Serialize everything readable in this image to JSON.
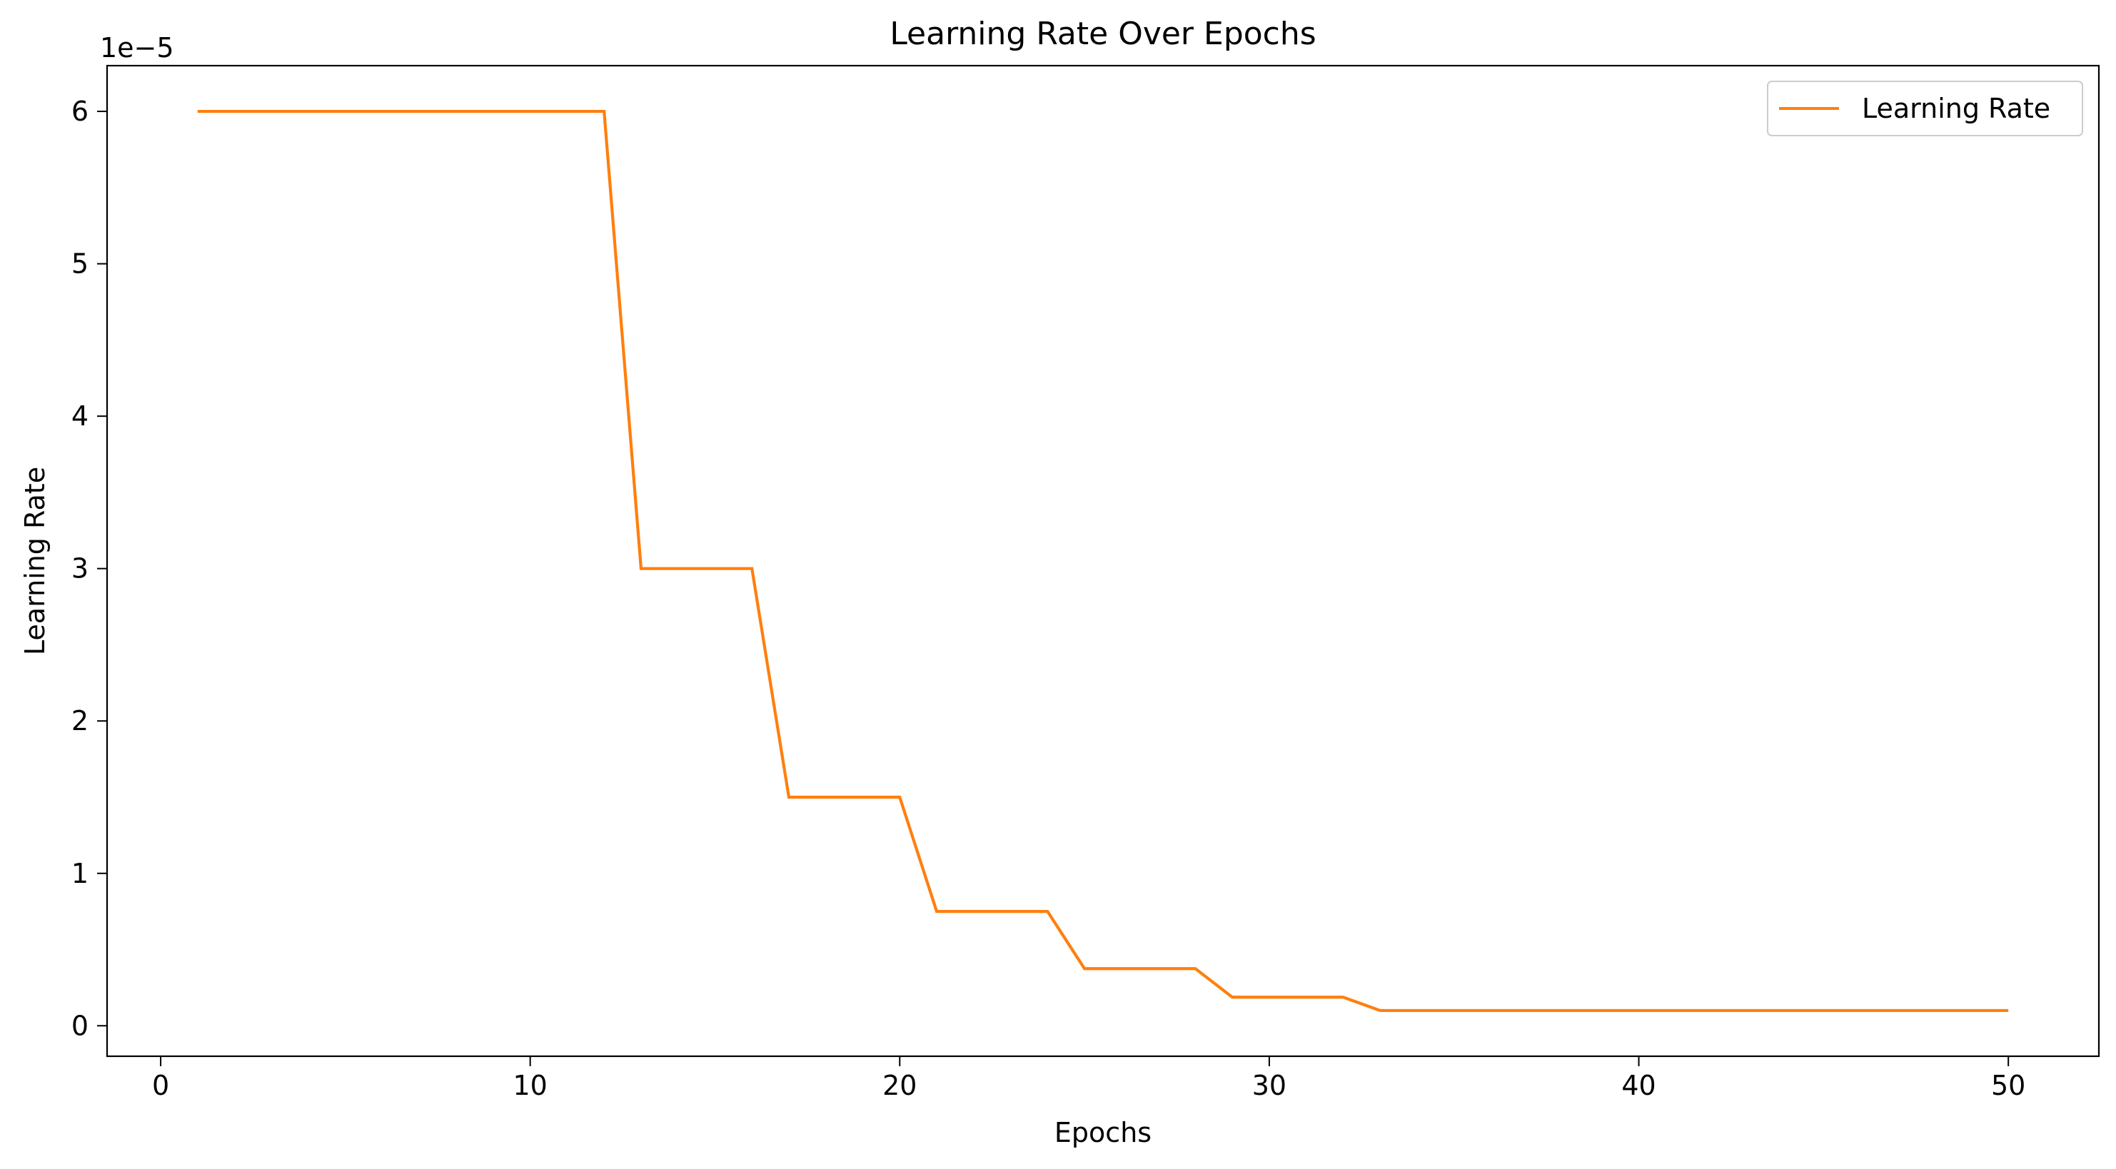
{
  "chart_data": {
    "type": "line",
    "title": "Learning Rate Over Epochs",
    "xlabel": "Epochs",
    "ylabel": "Learning Rate",
    "y_offset_label": "1e−5",
    "xlim": [
      -1.45,
      52.45
    ],
    "ylim": [
      -0.2,
      6.3
    ],
    "x_ticks": [
      0,
      10,
      20,
      30,
      40,
      50
    ],
    "x_tick_labels": [
      "0",
      "10",
      "20",
      "30",
      "40",
      "50"
    ],
    "y_ticks": [
      0,
      1,
      2,
      3,
      4,
      5,
      6
    ],
    "y_tick_labels": [
      "0",
      "1",
      "2",
      "3",
      "4",
      "5",
      "6"
    ],
    "grid": false,
    "legend_position": "top-right",
    "series": [
      {
        "name": "Learning Rate",
        "color": "#ff7f0e",
        "x": [
          1,
          2,
          3,
          4,
          5,
          6,
          7,
          8,
          9,
          10,
          11,
          12,
          13,
          14,
          15,
          16,
          17,
          18,
          19,
          20,
          21,
          22,
          23,
          24,
          25,
          26,
          27,
          28,
          29,
          30,
          31,
          32,
          33,
          34,
          35,
          36,
          37,
          38,
          39,
          40,
          41,
          42,
          43,
          44,
          45,
          46,
          47,
          48,
          49,
          50
        ],
        "values": [
          6,
          6,
          6,
          6,
          6,
          6,
          6,
          6,
          6,
          6,
          6,
          6,
          3,
          3,
          3,
          3,
          1.5,
          1.5,
          1.5,
          1.5,
          0.75,
          0.75,
          0.75,
          0.75,
          0.375,
          0.375,
          0.375,
          0.375,
          0.1875,
          0.1875,
          0.1875,
          0.1875,
          0.1,
          0.1,
          0.1,
          0.1,
          0.1,
          0.1,
          0.1,
          0.1,
          0.1,
          0.1,
          0.1,
          0.1,
          0.1,
          0.1,
          0.1,
          0.1,
          0.1,
          0.1
        ]
      }
    ]
  }
}
